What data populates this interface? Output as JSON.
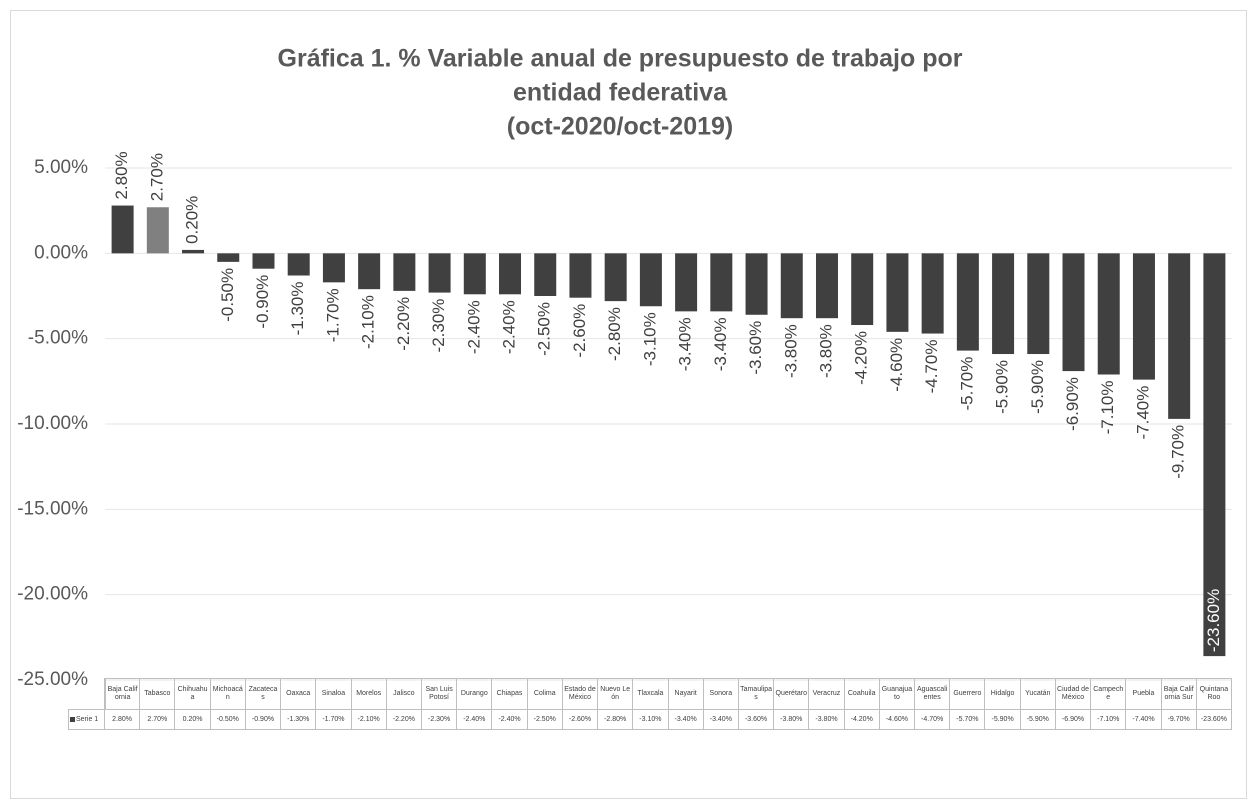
{
  "chart_data": {
    "type": "bar",
    "title": [
      "Gráfica 1. % Variable anual de presupuesto de trabajo por",
      "entidad federativa",
      "(oct-2020/oct-2019)"
    ],
    "categories": [
      "Baja California",
      "Tabasco",
      "Chihuahua",
      "Michoacán",
      "Zacatecas",
      "Oaxaca",
      "Sinaloa",
      "Morelos",
      "Jalisco",
      "San Luis Potosí",
      "Durango",
      "Chiapas",
      "Colima",
      "Estado de México",
      "Nuevo León",
      "Tlaxcala",
      "Nayarit",
      "Sonora",
      "Tamaulipas",
      "Querétaro",
      "Veracruz",
      "Coahuila",
      "Guanajuato",
      "Aguascalientes",
      "Guerrero",
      "Hidalgo",
      "Yucatán",
      "Ciudad de México",
      "Campeche",
      "Puebla",
      "Baja California Sur",
      "Quintana Roo"
    ],
    "series": [
      {
        "name": "Serie 1",
        "color": "#404040",
        "point_colors": [
          "#404040",
          "#808080",
          "#404040",
          "#404040",
          "#404040",
          "#404040",
          "#404040",
          "#404040",
          "#404040",
          "#404040",
          "#404040",
          "#404040",
          "#404040",
          "#404040",
          "#404040",
          "#404040",
          "#404040",
          "#404040",
          "#404040",
          "#404040",
          "#404040",
          "#404040",
          "#404040",
          "#404040",
          "#404040",
          "#404040",
          "#404040",
          "#404040",
          "#404040",
          "#404040",
          "#404040",
          "#404040"
        ],
        "values": [
          2.8,
          2.7,
          0.2,
          -0.5,
          -0.9,
          -1.3,
          -1.7,
          -2.1,
          -2.2,
          -2.3,
          -2.4,
          -2.4,
          -2.5,
          -2.6,
          -2.8,
          -3.1,
          -3.4,
          -3.4,
          -3.6,
          -3.8,
          -3.8,
          -4.2,
          -4.6,
          -4.7,
          -5.7,
          -5.9,
          -5.9,
          -6.9,
          -7.1,
          -7.4,
          -9.7,
          -23.6
        ],
        "value_labels": [
          "2.80%",
          "2.70%",
          "0.20%",
          "-0.50%",
          "-0.90%",
          "-1.30%",
          "-1.70%",
          "-2.10%",
          "-2.20%",
          "-2.30%",
          "-2.40%",
          "-2.40%",
          "-2.50%",
          "-2.60%",
          "-2.80%",
          "-3.10%",
          "-3.40%",
          "-3.40%",
          "-3.60%",
          "-3.80%",
          "-3.80%",
          "-4.20%",
          "-4.60%",
          "-4.70%",
          "-5.70%",
          "-5.90%",
          "-5.90%",
          "-6.90%",
          "-7.10%",
          "-7.40%",
          "-9.70%",
          "-23.60%"
        ]
      }
    ],
    "ylim": [
      -25,
      5
    ],
    "yticks": [
      {
        "value": -25,
        "label": "-25.00%"
      },
      {
        "value": -20,
        "label": "-20.00%"
      },
      {
        "value": -15,
        "label": "-15.00%"
      },
      {
        "value": -10,
        "label": "-10.00%"
      },
      {
        "value": -5,
        "label": "-5.00%"
      },
      {
        "value": 0,
        "label": "0.00%"
      },
      {
        "value": 5,
        "label": "5.00%"
      }
    ],
    "grid": true
  }
}
